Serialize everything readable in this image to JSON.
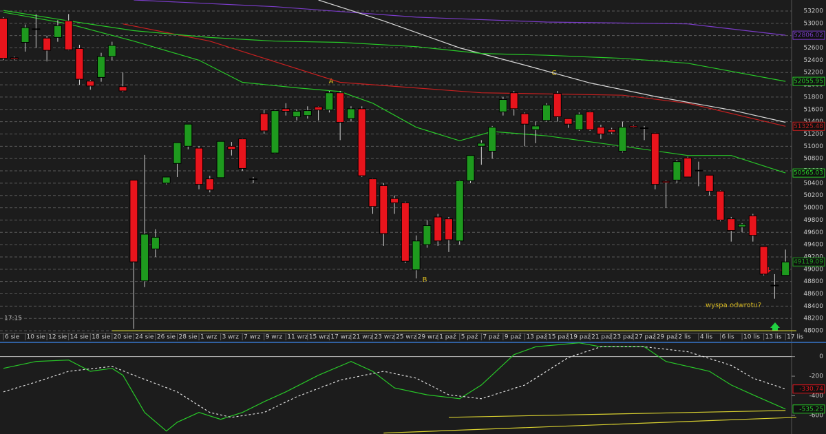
{
  "chart_data": [
    {
      "type": "candlestick",
      "time_label": "17:15",
      "categories": [
        "6 sie",
        null,
        "10 sie",
        null,
        "12 sie",
        null,
        "14 sie",
        null,
        "18 sie",
        null,
        "20 sie",
        null,
        "24 sie",
        null,
        "26 sie",
        null,
        "28 sie",
        null,
        "1 wrz",
        null,
        "3 wrz",
        null,
        "7 wrz",
        null,
        "9 wrz",
        null,
        "11 wrz",
        null,
        "15 wrz",
        null,
        "17 wrz",
        null,
        "21 wrz",
        null,
        "23 wrz",
        null,
        "25 wrz",
        null,
        "29 wrz",
        null,
        "1 paź",
        null,
        "5 paź",
        null,
        "7 paź",
        null,
        "9 paź",
        null,
        "13 paź",
        null,
        "15 paź",
        null,
        "19 paź",
        null,
        "21 paź",
        null,
        "23 paź",
        null,
        "27 paź",
        null,
        "29 paź",
        null,
        "2 lis",
        null,
        "4 lis",
        null,
        "6 lis",
        null,
        "10 lis",
        null,
        "13 lis",
        null,
        "17 lis"
      ],
      "open": [
        53080,
        52440,
        52690,
        52910,
        52760,
        52770,
        53040,
        52590,
        52060,
        52120,
        52460,
        51970,
        50450,
        48810,
        49330,
        50400,
        50720,
        51000,
        50970,
        50470,
        50490,
        51000,
        51120,
        50470,
        51530,
        50890,
        51610,
        51480,
        51500,
        51640,
        51590,
        51870,
        51450,
        51610,
        50470,
        50360,
        50150,
        50080,
        48990,
        49400,
        49850,
        49820,
        49460,
        50440,
        51000,
        50920,
        51560,
        51870,
        51530,
        51270,
        51420,
        51860,
        51450,
        51270,
        51560,
        51310,
        51270,
        50920,
        51330,
        51300,
        51210,
        50430,
        50450,
        50810,
        50610,
        50530,
        50270,
        49820,
        49690,
        49870,
        49370,
        48740,
        48900
      ],
      "high": [
        53100,
        52460,
        52980,
        53150,
        52800,
        53050,
        53150,
        52650,
        52080,
        52520,
        52700,
        52200,
        50450,
        50860,
        49650,
        50500,
        51060,
        51360,
        51000,
        50520,
        51080,
        51070,
        51130,
        50500,
        51600,
        51600,
        51700,
        51600,
        51650,
        51650,
        51900,
        51900,
        51650,
        51650,
        50480,
        50400,
        50200,
        50100,
        49550,
        49800,
        49900,
        49850,
        50450,
        50850,
        51100,
        51330,
        51800,
        51900,
        51550,
        51400,
        51700,
        51900,
        51450,
        51550,
        51570,
        51350,
        51300,
        51400,
        51350,
        51330,
        51220,
        50450,
        50780,
        50830,
        50750,
        50530,
        50280,
        49850,
        49750,
        49900,
        49370,
        48920,
        49320
      ],
      "low": [
        52400,
        52400,
        52540,
        52600,
        52380,
        52700,
        52560,
        52000,
        51920,
        52050,
        52400,
        51880,
        48030,
        48710,
        49200,
        50380,
        50500,
        50950,
        50300,
        50250,
        50490,
        50850,
        50600,
        50400,
        51200,
        50880,
        51500,
        51420,
        51450,
        51420,
        51550,
        51100,
        51400,
        50500,
        49900,
        49380,
        49900,
        49100,
        48850,
        49350,
        49380,
        49280,
        49400,
        50400,
        50700,
        50800,
        51500,
        51500,
        51000,
        51050,
        51400,
        51400,
        51300,
        51250,
        51250,
        51120,
        51200,
        50900,
        51300,
        51100,
        50300,
        50000,
        50400,
        50500,
        50350,
        50200,
        49780,
        49450,
        49600,
        49450,
        48900,
        48520,
        48900
      ],
      "close": [
        52430,
        52420,
        52930,
        52900,
        52560,
        52960,
        52570,
        52090,
        51980,
        52460,
        52640,
        51900,
        49120,
        49570,
        49520,
        50500,
        51060,
        51360,
        50380,
        50290,
        51080,
        50950,
        50640,
        50460,
        51250,
        51580,
        51570,
        51570,
        51580,
        51590,
        51870,
        51390,
        51610,
        50520,
        50020,
        49580,
        50080,
        49130,
        49460,
        49710,
        49460,
        49480,
        50440,
        50850,
        51050,
        51310,
        51760,
        51610,
        51360,
        51330,
        51670,
        51480,
        51360,
        51520,
        51270,
        51200,
        51230,
        51310,
        51310,
        51300,
        50380,
        50410,
        50750,
        50500,
        50600,
        50270,
        49800,
        49630,
        49730,
        49550,
        48920,
        48730,
        49119.09
      ],
      "up_color": "#1e9a1e",
      "down_color": "#e8141c",
      "close_label": true,
      "ylim": [
        47956,
        53379
      ],
      "yticks": [
        48000,
        48200,
        48400,
        48600,
        48800,
        49000,
        49200,
        49400,
        49600,
        49800,
        50000,
        50200,
        50400,
        50600,
        50800,
        51000,
        51200,
        51400,
        51600,
        51800,
        52000,
        52200,
        52400,
        52600,
        52800,
        53000,
        53200
      ],
      "grid": true,
      "overlays": [
        {
          "color": "#7a3cc8",
          "last_label": true,
          "x": [
            12,
            25,
            38,
            50,
            63,
            72
          ],
          "values": [
            53379,
            53270,
            53100,
            53020,
            52990,
            52806.02
          ]
        },
        {
          "color": "#d8d8d8",
          "last_label": false,
          "x": [
            29,
            35,
            42,
            48,
            54,
            60,
            67,
            72
          ],
          "values": [
            53379,
            53040,
            52600,
            52320,
            52030,
            51810,
            51590,
            51390
          ]
        },
        {
          "color": "#c82020",
          "last_label": true,
          "x": [
            11,
            19,
            31,
            44,
            57,
            63,
            72
          ],
          "values": [
            52990,
            52710,
            52040,
            51870,
            51830,
            51700,
            51325.48
          ]
        },
        {
          "color": "#28c828",
          "last_label": true,
          "x": [
            0,
            6,
            12,
            19,
            25,
            31,
            38,
            44,
            50,
            57,
            63,
            72
          ],
          "values": [
            53210,
            53040,
            52880,
            52770,
            52710,
            52690,
            52620,
            52510,
            52480,
            52430,
            52350,
            52055.95
          ]
        },
        {
          "color": "#28c828",
          "last_label": true,
          "x": [
            0,
            6,
            12,
            18,
            22,
            27,
            31,
            34,
            38,
            42,
            45,
            50,
            57,
            63,
            67,
            72
          ],
          "values": [
            53180,
            52990,
            52710,
            52400,
            52040,
            51950,
            51890,
            51700,
            51310,
            51090,
            51240,
            51170,
            51000,
            50850,
            50850,
            50565.03
          ]
        },
        {
          "color": "#c8c832",
          "last_label": false,
          "x": [
            10,
            73
          ],
          "values": [
            48000,
            48000
          ]
        }
      ],
      "annotations": [
        "A",
        "B",
        "C",
        "wyspa odwrotu?"
      ]
    },
    {
      "type": "line",
      "ylim": [
        -790,
        145
      ],
      "yticks": [
        0,
        -200,
        -400,
        -600
      ],
      "zero_line": true,
      "series": [
        {
          "color": "#28c828",
          "dash": false,
          "last_label": true,
          "x": [
            0,
            3,
            6,
            8,
            10,
            11,
            13,
            15,
            16,
            18,
            20,
            22,
            24,
            26,
            29,
            32,
            34,
            36,
            39,
            42,
            44,
            47,
            49,
            53,
            55,
            59,
            61,
            65,
            67,
            69,
            72
          ],
          "values": [
            -120,
            -50,
            -35,
            -150,
            -120,
            -190,
            -570,
            -760,
            -670,
            -570,
            -640,
            -570,
            -460,
            -360,
            -190,
            -50,
            -150,
            -320,
            -390,
            -430,
            -290,
            20,
            100,
            140,
            100,
            100,
            -50,
            -150,
            -290,
            -390,
            -535.25
          ]
        },
        {
          "color": "#e0e0e0",
          "dash": true,
          "last_label": true,
          "x": [
            0,
            3,
            6,
            10,
            12,
            16,
            19,
            21,
            24,
            27,
            31,
            35,
            38,
            41,
            44,
            48,
            52,
            55,
            59,
            63,
            67,
            69,
            72
          ],
          "values": [
            -360,
            -260,
            -150,
            -100,
            -190,
            -360,
            -570,
            -620,
            -570,
            -410,
            -240,
            -150,
            -220,
            -390,
            -430,
            -290,
            -10,
            100,
            100,
            50,
            -90,
            -220,
            -330.74
          ]
        },
        {
          "color": "#d8d030",
          "dash": false,
          "last_label": false,
          "x": [
            41,
            72
          ],
          "values": [
            -620,
            -550
          ]
        },
        {
          "color": "#d8d030",
          "dash": false,
          "last_label": false,
          "x": [
            35,
            73
          ],
          "values": [
            -780,
            -620
          ]
        }
      ]
    }
  ]
}
